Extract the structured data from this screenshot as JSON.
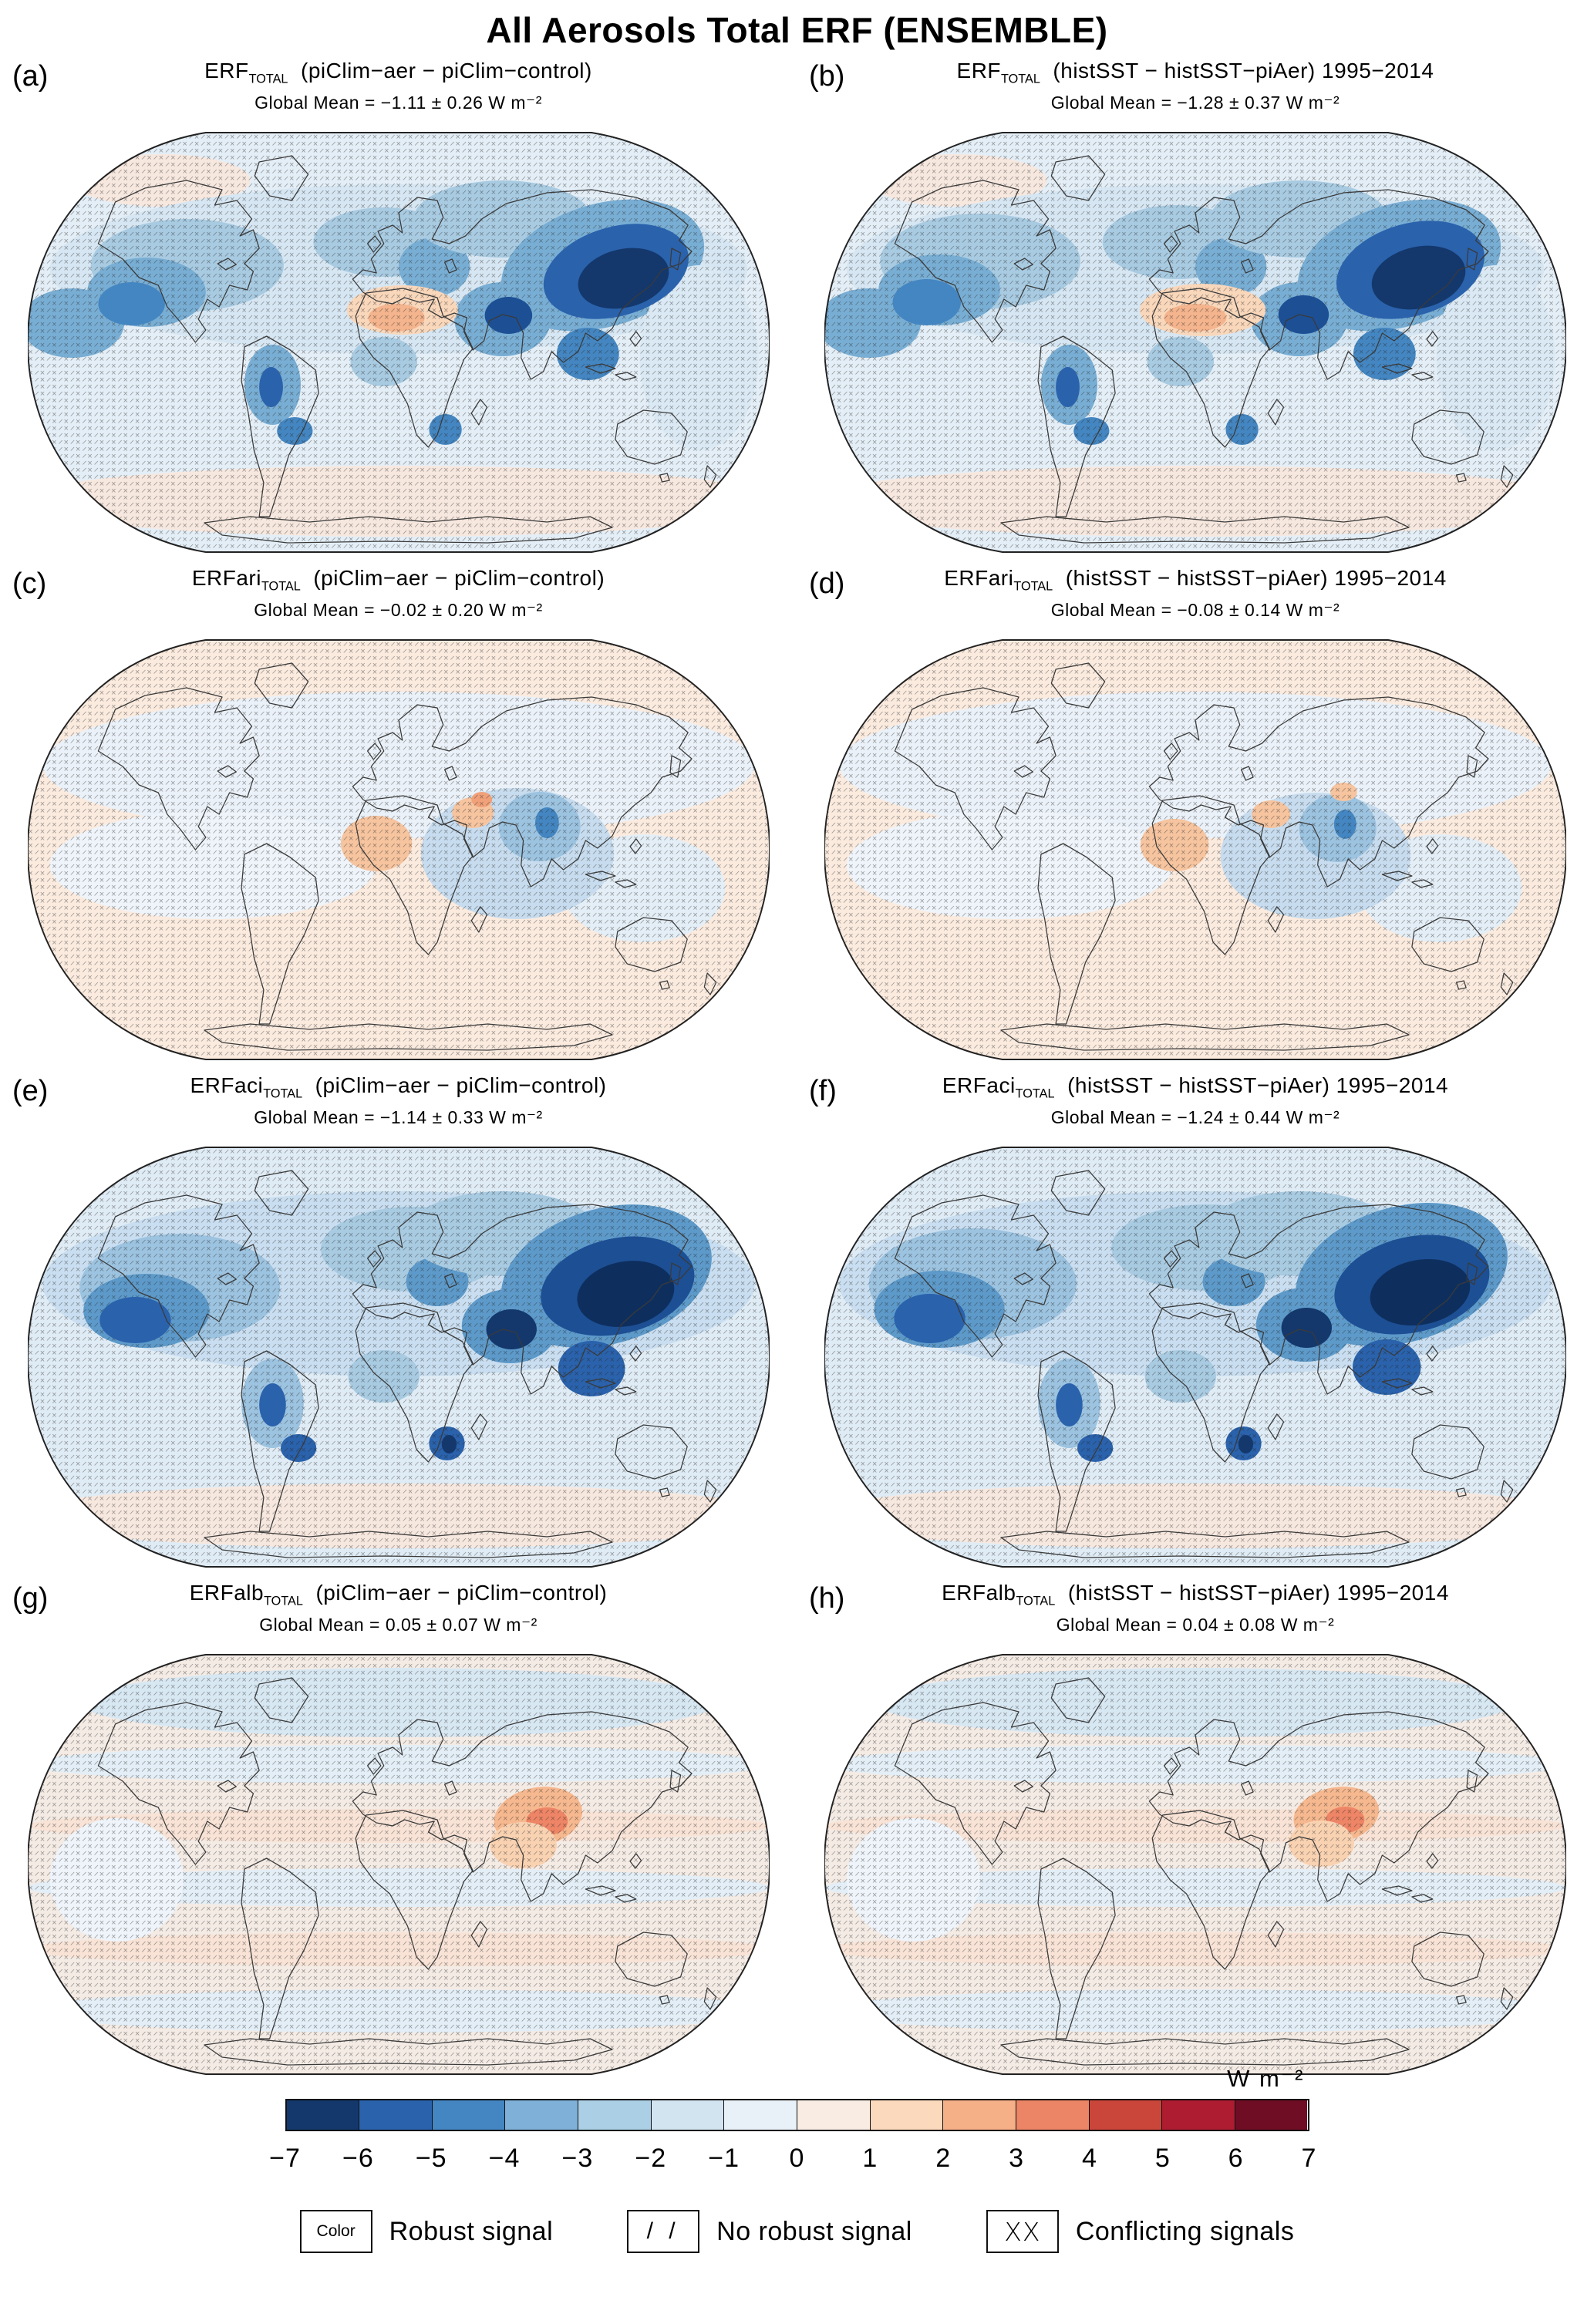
{
  "figure": {
    "title": "All Aerosols Total ERF (ENSEMBLE)"
  },
  "panels": [
    {
      "id": "a",
      "label": "(a)",
      "var_name": "ERF",
      "var_sub": "TOTAL",
      "experiment": "(piClim−aer − piClim−control)",
      "subtitle": "Global Mean = −1.11 ± 0.26 W m⁻²",
      "map": "total_pi"
    },
    {
      "id": "b",
      "label": "(b)",
      "var_name": "ERF",
      "var_sub": "TOTAL",
      "experiment": "(histSST − histSST−piAer) 1995−2014",
      "subtitle": "Global Mean = −1.28 ± 0.37 W m⁻²",
      "map": "total_hist"
    },
    {
      "id": "c",
      "label": "(c)",
      "var_name": "ERFari",
      "var_sub": "TOTAL",
      "experiment": "(piClim−aer − piClim−control)",
      "subtitle": "Global Mean = −0.02 ± 0.20 W m⁻²",
      "map": "ari_pi"
    },
    {
      "id": "d",
      "label": "(d)",
      "var_name": "ERFari",
      "var_sub": "TOTAL",
      "experiment": "(histSST − histSST−piAer) 1995−2014",
      "subtitle": "Global Mean = −0.08 ± 0.14 W m⁻²",
      "map": "ari_hist"
    },
    {
      "id": "e",
      "label": "(e)",
      "var_name": "ERFaci",
      "var_sub": "TOTAL",
      "experiment": "(piClim−aer − piClim−control)",
      "subtitle": "Global Mean = −1.14 ± 0.33 W m⁻²",
      "map": "aci_pi"
    },
    {
      "id": "f",
      "label": "(f)",
      "var_name": "ERFaci",
      "var_sub": "TOTAL",
      "experiment": "(histSST − histSST−piAer) 1995−2014",
      "subtitle": "Global Mean = −1.24 ± 0.44 W m⁻²",
      "map": "aci_hist"
    },
    {
      "id": "g",
      "label": "(g)",
      "var_name": "ERFalb",
      "var_sub": "TOTAL",
      "experiment": "(piClim−aer − piClim−control)",
      "subtitle": "Global Mean = 0.05 ± 0.07 W m⁻²",
      "map": "alb_pi"
    },
    {
      "id": "h",
      "label": "(h)",
      "var_name": "ERFalb",
      "var_sub": "TOTAL",
      "experiment": "(histSST − histSST−piAer) 1995−2014",
      "subtitle": "Global Mean = 0.04 ± 0.08 W m⁻²",
      "map": "alb_hist"
    }
  ],
  "colorbar": {
    "unit": "W m⁻²",
    "ticks": [
      "−7",
      "−6",
      "−5",
      "−4",
      "−3",
      "−2",
      "−1",
      "0",
      "1",
      "2",
      "3",
      "4",
      "5",
      "6",
      "7"
    ],
    "colors": [
      "#14386c",
      "#2a62ac",
      "#4486c1",
      "#7fb0d7",
      "#abcfe5",
      "#d3e4f1",
      "#e9f1f8",
      "#f9ece3",
      "#fbd9bd",
      "#f6b088",
      "#ec8566",
      "#cb463a",
      "#ae1c31",
      "#6e0d23"
    ]
  },
  "legend": {
    "items": [
      {
        "symbol": "Color",
        "type": "color",
        "label": "Robust signal"
      },
      {
        "symbol": "/ /",
        "type": "slashes",
        "label": "No robust signal"
      },
      {
        "symbol": "XX",
        "type": "crosses",
        "label": "Conflicting signals"
      }
    ]
  },
  "map_specs": {
    "total_pi": {
      "base": "#e4eef6",
      "under": [
        [
          500,
          486,
          520,
          46,
          "#f7e8df"
        ],
        [
          180,
          70,
          120,
          34,
          "#f7e8df"
        ],
        [
          500,
          185,
          470,
          110,
          "#d6e6f2"
        ],
        [
          215,
          180,
          130,
          60,
          "#a8cbe2"
        ],
        [
          160,
          215,
          80,
          45,
          "#79aed4"
        ],
        [
          60,
          255,
          70,
          45,
          "#79aed4"
        ],
        [
          480,
          150,
          95,
          45,
          "#a8cbe2"
        ],
        [
          548,
          182,
          48,
          38,
          "#79aed4"
        ],
        [
          640,
          120,
          120,
          50,
          "#a8cbe2"
        ],
        [
          775,
          180,
          140,
          80,
          "#79aed4",
          -15
        ],
        [
          640,
          250,
          65,
          48,
          "#79aed4"
        ],
        [
          755,
          295,
          42,
          34,
          "#4486c1"
        ],
        [
          330,
          335,
          38,
          52,
          "#79aed4"
        ],
        [
          360,
          395,
          24,
          18,
          "#4486c1"
        ],
        [
          563,
          393,
          22,
          20,
          "#4486c1"
        ],
        [
          480,
          305,
          45,
          32,
          "#a8cbe2"
        ],
        [
          905,
          300,
          80,
          120,
          "#dae9f4"
        ],
        [
          505,
          238,
          75,
          32,
          "#f9d7bb"
        ],
        [
          497,
          248,
          38,
          18,
          "#f4b48d"
        ]
      ],
      "over": [
        [
          140,
          230,
          45,
          28,
          "#4486c1"
        ],
        [
          793,
          188,
          100,
          58,
          "#2a62ac",
          -15
        ],
        [
          803,
          197,
          62,
          38,
          "#14386c",
          -12
        ],
        [
          648,
          245,
          32,
          24,
          "#1d4f94"
        ],
        [
          328,
          338,
          16,
          26,
          "#2a62ac"
        ]
      ]
    },
    "total_hist": {
      "base": "#e4eef6",
      "under": [
        [
          500,
          486,
          520,
          46,
          "#f7e8df"
        ],
        [
          180,
          70,
          120,
          34,
          "#f7e8df"
        ],
        [
          500,
          185,
          470,
          110,
          "#d6e6f2"
        ],
        [
          210,
          175,
          135,
          62,
          "#a8cbe2"
        ],
        [
          155,
          212,
          82,
          46,
          "#79aed4"
        ],
        [
          60,
          255,
          70,
          45,
          "#79aed4"
        ],
        [
          475,
          150,
          100,
          48,
          "#a8cbe2"
        ],
        [
          548,
          182,
          48,
          38,
          "#79aed4"
        ],
        [
          640,
          120,
          120,
          50,
          "#a8cbe2"
        ],
        [
          775,
          180,
          140,
          80,
          "#79aed4",
          -15
        ],
        [
          640,
          250,
          65,
          48,
          "#79aed4"
        ],
        [
          755,
          295,
          42,
          34,
          "#4486c1"
        ],
        [
          330,
          335,
          38,
          52,
          "#79aed4"
        ],
        [
          360,
          395,
          24,
          18,
          "#4486c1"
        ],
        [
          563,
          393,
          22,
          20,
          "#4486c1"
        ],
        [
          480,
          305,
          45,
          32,
          "#a8cbe2"
        ],
        [
          905,
          300,
          80,
          120,
          "#dae9f4"
        ],
        [
          510,
          238,
          85,
          34,
          "#f9d7bb"
        ],
        [
          500,
          248,
          42,
          18,
          "#f4b48d"
        ]
      ],
      "over": [
        [
          138,
          228,
          46,
          30,
          "#4486c1"
        ],
        [
          790,
          186,
          102,
          60,
          "#2a62ac",
          -15
        ],
        [
          801,
          196,
          64,
          40,
          "#14386c",
          -12
        ],
        [
          646,
          244,
          34,
          25,
          "#1d4f94"
        ],
        [
          328,
          338,
          16,
          26,
          "#2a62ac"
        ]
      ]
    },
    "ari_pi": {
      "base": "#fbebdf",
      "under": [
        [
          500,
          170,
          480,
          95,
          "#eaf1f8"
        ],
        [
          250,
          300,
          220,
          70,
          "#eef4fa"
        ],
        [
          830,
          330,
          110,
          70,
          "#e4eef6"
        ],
        [
          660,
          285,
          130,
          85,
          "#c7dcee"
        ],
        [
          690,
          250,
          55,
          45,
          "#9cc3e0"
        ],
        [
          700,
          245,
          16,
          20,
          "#4486c1"
        ],
        [
          470,
          272,
          48,
          36,
          "#f6c49f"
        ],
        [
          600,
          232,
          28,
          20,
          "#f6c49f"
        ],
        [
          612,
          215,
          14,
          10,
          "#f1a179"
        ]
      ],
      "over": []
    },
    "ari_hist": {
      "base": "#fbebdf",
      "under": [
        [
          500,
          170,
          480,
          95,
          "#eaf1f8"
        ],
        [
          250,
          300,
          220,
          70,
          "#eef4fa"
        ],
        [
          830,
          330,
          110,
          70,
          "#e4eef6"
        ],
        [
          662,
          288,
          128,
          82,
          "#c7dcee"
        ],
        [
          692,
          252,
          52,
          44,
          "#9cc3e0"
        ],
        [
          702,
          247,
          15,
          19,
          "#4486c1"
        ],
        [
          472,
          274,
          46,
          34,
          "#f6c49f"
        ],
        [
          602,
          234,
          26,
          18,
          "#f6c49f"
        ],
        [
          700,
          205,
          18,
          12,
          "#f6c49f"
        ]
      ],
      "over": []
    },
    "aci_pi": {
      "base": "#e0ecf5",
      "under": [
        [
          500,
          486,
          520,
          42,
          "#f7e8df"
        ],
        [
          500,
          185,
          480,
          120,
          "#c9def0"
        ],
        [
          205,
          190,
          135,
          70,
          "#9cc3e0"
        ],
        [
          160,
          220,
          85,
          48,
          "#5d9aca"
        ],
        [
          520,
          140,
          125,
          55,
          "#a8cbe2"
        ],
        [
          552,
          182,
          42,
          32,
          "#5d9aca"
        ],
        [
          640,
          120,
          130,
          55,
          "#a8cbe2"
        ],
        [
          780,
          175,
          145,
          88,
          "#5d9aca",
          -15
        ],
        [
          650,
          240,
          65,
          48,
          "#5d9aca"
        ],
        [
          760,
          295,
          45,
          36,
          "#2a62ac"
        ],
        [
          330,
          340,
          42,
          58,
          "#9cc3e0"
        ],
        [
          365,
          398,
          24,
          18,
          "#2a62ac"
        ],
        [
          565,
          392,
          24,
          22,
          "#2a62ac"
        ],
        [
          480,
          305,
          48,
          34,
          "#a8cbe2"
        ]
      ],
      "over": [
        [
          145,
          232,
          48,
          30,
          "#2a62ac"
        ],
        [
          795,
          188,
          105,
          62,
          "#1d4f94",
          -12
        ],
        [
          806,
          198,
          66,
          42,
          "#0e2f5e",
          -10
        ],
        [
          652,
          244,
          34,
          26,
          "#14386c"
        ],
        [
          330,
          342,
          18,
          28,
          "#2a62ac"
        ],
        [
          568,
          393,
          10,
          12,
          "#14386c"
        ]
      ]
    },
    "aci_hist": {
      "base": "#e0ecf5",
      "under": [
        [
          500,
          486,
          520,
          42,
          "#f7e8df"
        ],
        [
          500,
          185,
          480,
          120,
          "#c9def0"
        ],
        [
          200,
          185,
          140,
          72,
          "#9cc3e0"
        ],
        [
          155,
          218,
          88,
          50,
          "#5d9aca"
        ],
        [
          515,
          138,
          128,
          56,
          "#a8cbe2"
        ],
        [
          552,
          182,
          42,
          32,
          "#5d9aca"
        ],
        [
          640,
          120,
          130,
          55,
          "#a8cbe2"
        ],
        [
          778,
          173,
          146,
          88,
          "#5d9aca",
          -15
        ],
        [
          648,
          238,
          66,
          48,
          "#5d9aca"
        ],
        [
          758,
          293,
          46,
          36,
          "#2a62ac"
        ],
        [
          330,
          340,
          42,
          58,
          "#9cc3e0"
        ],
        [
          365,
          398,
          24,
          18,
          "#2a62ac"
        ],
        [
          565,
          392,
          24,
          22,
          "#2a62ac"
        ],
        [
          480,
          305,
          48,
          34,
          "#a8cbe2"
        ]
      ],
      "over": [
        [
          142,
          230,
          48,
          32,
          "#2a62ac"
        ],
        [
          792,
          186,
          106,
          62,
          "#1d4f94",
          -12
        ],
        [
          803,
          196,
          68,
          42,
          "#0e2f5e",
          -10
        ],
        [
          650,
          242,
          34,
          26,
          "#14386c"
        ],
        [
          330,
          342,
          18,
          28,
          "#2a62ac"
        ],
        [
          568,
          393,
          10,
          12,
          "#14386c"
        ]
      ]
    },
    "alb_pi": {
      "base": "#f4ebe5",
      "under": [
        [
          500,
          70,
          430,
          45,
          "#d8e8f3"
        ],
        [
          500,
          150,
          500,
          25,
          "#e3eef6"
        ],
        [
          500,
          230,
          500,
          22,
          "#f8e3d6"
        ],
        [
          500,
          310,
          500,
          25,
          "#e3eef6"
        ],
        [
          500,
          390,
          500,
          22,
          "#f8e3d6"
        ],
        [
          500,
          470,
          500,
          28,
          "#e3eef6"
        ],
        [
          120,
          300,
          90,
          80,
          "#eef4fa"
        ],
        [
          688,
          218,
          60,
          38,
          "#f6b88f",
          -10
        ],
        [
          700,
          224,
          28,
          18,
          "#ee8566"
        ],
        [
          668,
          255,
          45,
          30,
          "#f9d2b2"
        ]
      ],
      "over": []
    },
    "alb_hist": {
      "base": "#f4ebe5",
      "under": [
        [
          500,
          70,
          430,
          45,
          "#d8e8f3"
        ],
        [
          500,
          150,
          500,
          25,
          "#e3eef6"
        ],
        [
          500,
          230,
          500,
          22,
          "#f8e3d6"
        ],
        [
          500,
          310,
          500,
          25,
          "#e3eef6"
        ],
        [
          500,
          390,
          500,
          22,
          "#f8e3d6"
        ],
        [
          500,
          470,
          500,
          28,
          "#e3eef6"
        ],
        [
          120,
          300,
          90,
          80,
          "#eef4fa"
        ],
        [
          690,
          216,
          58,
          36,
          "#f6b88f",
          -10
        ],
        [
          702,
          222,
          26,
          17,
          "#ee8566"
        ],
        [
          670,
          253,
          44,
          30,
          "#f9d2b2"
        ]
      ],
      "over": []
    }
  },
  "chart_data": {
    "type": "heatmap",
    "title": "All Aerosols Total ERF (ENSEMBLE)",
    "description": "Eight global maps (Robinson projection) of ensemble-mean aerosol effective radiative forcing, with stippling/hatching for signal robustness.",
    "panels": [
      {
        "id": "(a)",
        "variable": "ERF_TOTAL",
        "experiment": "piClim-aer - piClim-control",
        "global_mean_W_m2": -1.11,
        "uncertainty_W_m2": 0.26
      },
      {
        "id": "(b)",
        "variable": "ERF_TOTAL",
        "experiment": "histSST - histSST-piAer",
        "period": "1995-2014",
        "global_mean_W_m2": -1.28,
        "uncertainty_W_m2": 0.37
      },
      {
        "id": "(c)",
        "variable": "ERFari_TOTAL",
        "experiment": "piClim-aer - piClim-control",
        "global_mean_W_m2": -0.02,
        "uncertainty_W_m2": 0.2
      },
      {
        "id": "(d)",
        "variable": "ERFari_TOTAL",
        "experiment": "histSST - histSST-piAer",
        "period": "1995-2014",
        "global_mean_W_m2": -0.08,
        "uncertainty_W_m2": 0.14
      },
      {
        "id": "(e)",
        "variable": "ERFaci_TOTAL",
        "experiment": "piClim-aer - piClim-control",
        "global_mean_W_m2": -1.14,
        "uncertainty_W_m2": 0.33
      },
      {
        "id": "(f)",
        "variable": "ERFaci_TOTAL",
        "experiment": "histSST - histSST-piAer",
        "period": "1995-2014",
        "global_mean_W_m2": -1.24,
        "uncertainty_W_m2": 0.44
      },
      {
        "id": "(g)",
        "variable": "ERFalb_TOTAL",
        "experiment": "piClim-aer - piClim-control",
        "global_mean_W_m2": 0.05,
        "uncertainty_W_m2": 0.07
      },
      {
        "id": "(h)",
        "variable": "ERFalb_TOTAL",
        "experiment": "histSST - histSST-piAer",
        "period": "1995-2014",
        "global_mean_W_m2": 0.04,
        "uncertainty_W_m2": 0.08
      }
    ],
    "colorbar": {
      "label": "W m^-2",
      "ticks": [
        -7,
        -6,
        -5,
        -4,
        -3,
        -2,
        -1,
        0,
        1,
        2,
        3,
        4,
        5,
        6,
        7
      ],
      "colors": [
        "#14386c",
        "#2a62ac",
        "#4486c1",
        "#7fb0d7",
        "#abcfe5",
        "#d3e4f1",
        "#e9f1f8",
        "#f9ece3",
        "#fbd9bd",
        "#f6b088",
        "#ec8566",
        "#cb463a",
        "#ae1c31",
        "#6e0d23"
      ]
    },
    "hatching_legend": [
      {
        "symbol": "Color",
        "meaning": "Robust signal"
      },
      {
        "symbol": "//",
        "meaning": "No robust signal"
      },
      {
        "symbol": "XX",
        "meaning": "Conflicting signals"
      }
    ]
  }
}
